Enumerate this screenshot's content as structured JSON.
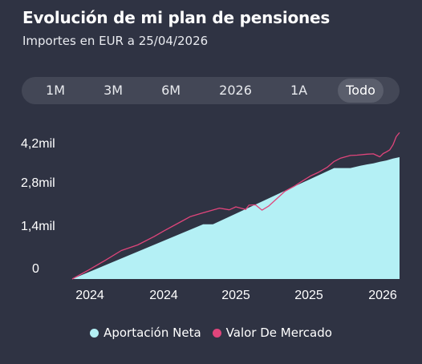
{
  "header": {
    "title": "Evolución de mi plan de pensiones",
    "subtitle": "Importes en EUR a 25/04/2026"
  },
  "periods": [
    {
      "label": "1M",
      "active": false
    },
    {
      "label": "3M",
      "active": false
    },
    {
      "label": "6M",
      "active": false
    },
    {
      "label": "2026",
      "active": false
    },
    {
      "label": "1A",
      "active": false
    },
    {
      "label": "Todo",
      "active": true
    }
  ],
  "colors": {
    "background": "#2f3343",
    "aportacion": "#b4f0f5",
    "mercado": "#e0457b"
  },
  "chart_data": {
    "type": "area",
    "ylim": [
      0,
      4600
    ],
    "y_ticks": [
      {
        "value": 0,
        "label": "0"
      },
      {
        "value": 1400,
        "label": "1,4mil"
      },
      {
        "value": 2800,
        "label": "2,8mil"
      },
      {
        "value": 4200,
        "label": "4,2mil"
      }
    ],
    "x_tick_labels": [
      "2024",
      "2024",
      "2025",
      "2025",
      "2026"
    ],
    "xlim": [
      0,
      100
    ],
    "series": [
      {
        "name": "Aportación Neta",
        "type": "area",
        "x": [
          0,
          40,
          43,
          63,
          80,
          85,
          88,
          90,
          92,
          94,
          96,
          98,
          100
        ],
        "y": [
          0,
          1650,
          1650,
          2570,
          3350,
          3350,
          3420,
          3460,
          3490,
          3540,
          3580,
          3640,
          3680
        ]
      },
      {
        "name": "Valor De Mercado",
        "type": "line",
        "x": [
          0,
          5,
          10,
          15,
          20,
          25,
          28,
          33,
          36,
          40,
          45,
          48,
          50,
          53,
          54,
          56,
          58,
          60,
          63,
          65,
          68,
          70,
          73,
          75,
          78,
          80,
          82,
          85,
          87,
          90,
          92,
          94,
          95,
          96,
          97,
          98,
          99,
          100
        ],
        "y": [
          0,
          270,
          560,
          860,
          1030,
          1280,
          1450,
          1720,
          1880,
          2000,
          2140,
          2090,
          2180,
          2100,
          2230,
          2240,
          2080,
          2200,
          2470,
          2650,
          2810,
          2940,
          3120,
          3210,
          3380,
          3550,
          3650,
          3730,
          3740,
          3770,
          3780,
          3690,
          3790,
          3840,
          3900,
          4050,
          4300,
          4420
        ]
      }
    ]
  },
  "legend": {
    "aportacion_label": "Aportación Neta",
    "mercado_label": "Valor De Mercado"
  }
}
